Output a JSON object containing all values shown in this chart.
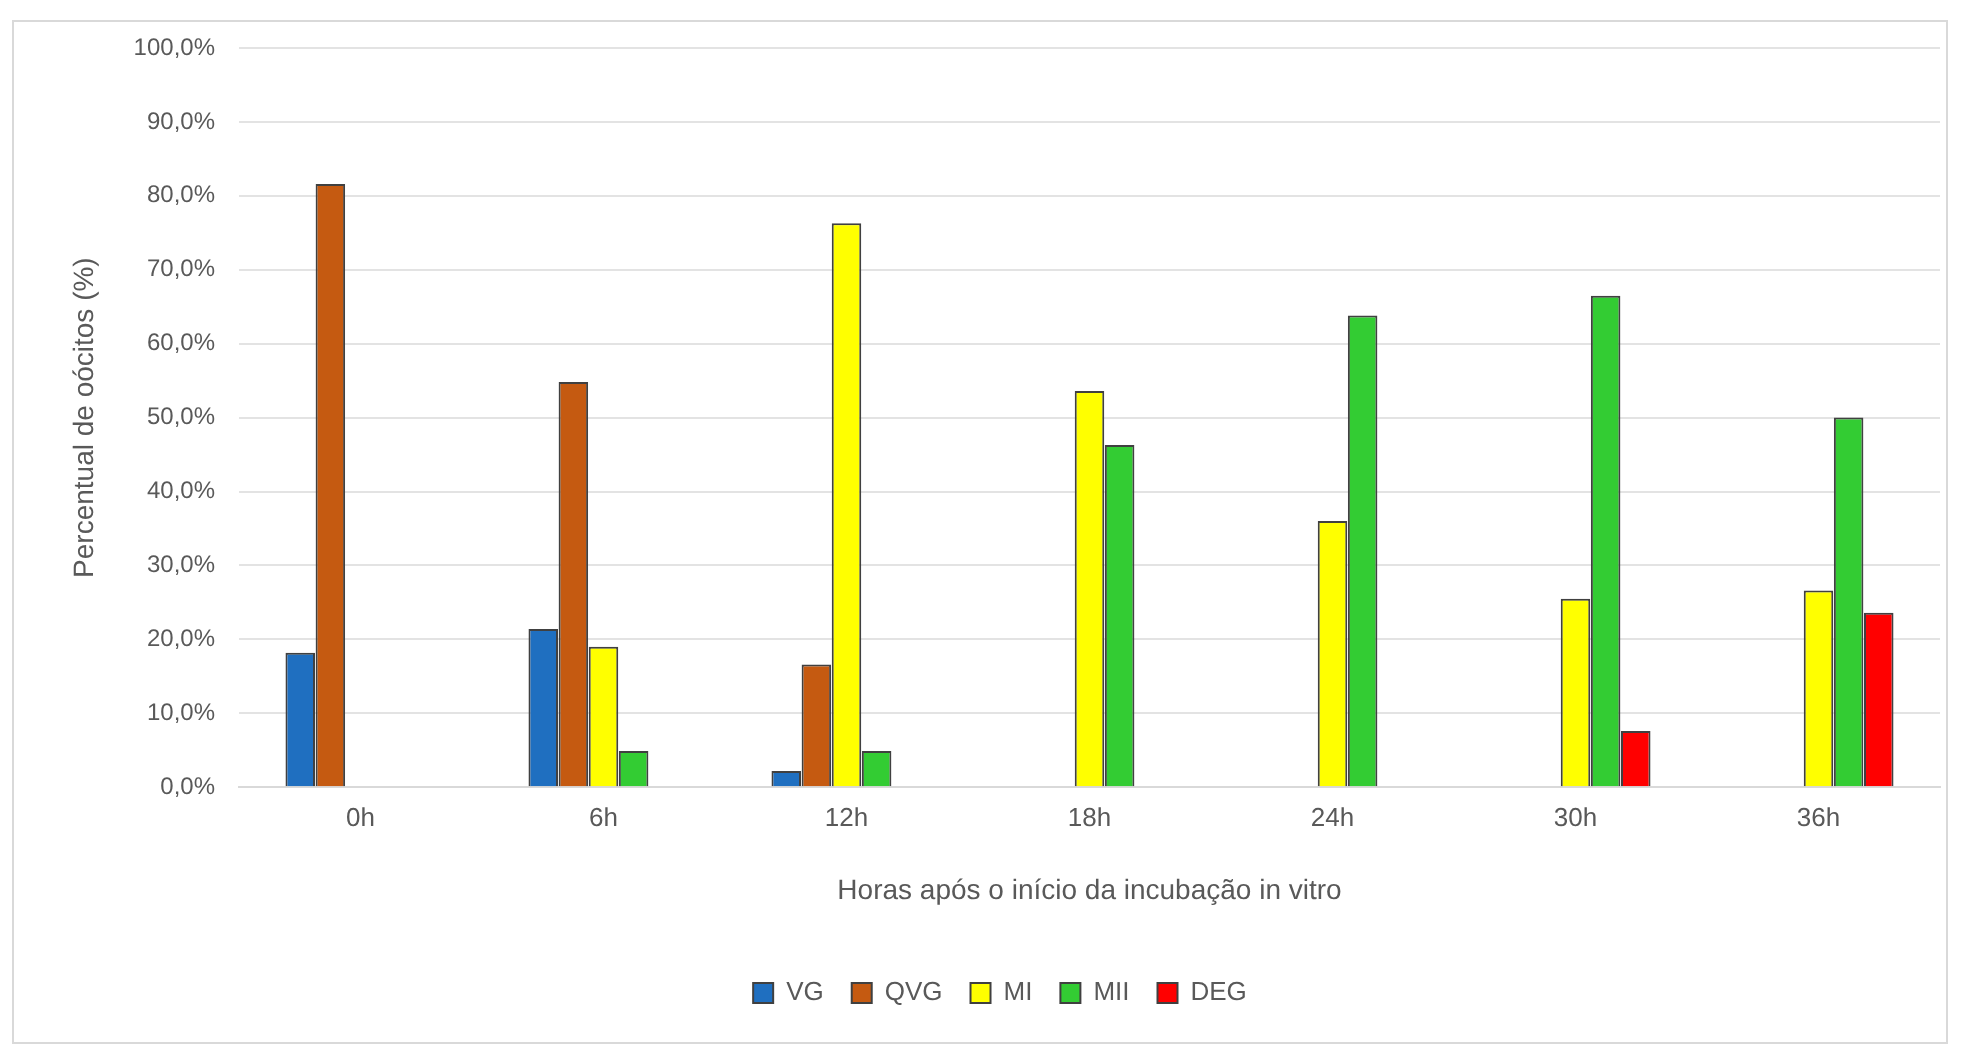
{
  "chart_data": {
    "type": "bar",
    "xlabel": "Horas após o início da incubação in vitro",
    "ylabel": "Percentual de oócitos (%)",
    "categories": [
      "0h",
      "6h",
      "12h",
      "18h",
      "24h",
      "30h",
      "36h"
    ],
    "series": [
      {
        "name": "VG",
        "color": "#1f6fc0",
        "values": [
          18.2,
          21.4,
          2.2,
          null,
          null,
          null,
          null
        ]
      },
      {
        "name": "QVG",
        "color": "#c55a11",
        "values": [
          81.6,
          54.8,
          16.6,
          null,
          null,
          null,
          null
        ]
      },
      {
        "name": "MI",
        "color": "#ffff00",
        "values": [
          null,
          19.0,
          76.3,
          53.6,
          36.0,
          25.5,
          26.6
        ]
      },
      {
        "name": "MII",
        "color": "#33cc33",
        "values": [
          null,
          4.9,
          4.9,
          46.3,
          63.8,
          66.5,
          50.0
        ]
      },
      {
        "name": "DEG",
        "color": "#ff0000",
        "values": [
          null,
          null,
          null,
          null,
          null,
          7.6,
          23.6
        ]
      }
    ],
    "ylim": [
      0,
      100
    ],
    "yticks": [
      {
        "value": 0,
        "label": "0,0%"
      },
      {
        "value": 10,
        "label": "10,0%"
      },
      {
        "value": 20,
        "label": "20,0%"
      },
      {
        "value": 30,
        "label": "30,0%"
      },
      {
        "value": 40,
        "label": "40,0%"
      },
      {
        "value": 50,
        "label": "50,0%"
      },
      {
        "value": 60,
        "label": "60,0%"
      },
      {
        "value": 70,
        "label": "70,0%"
      },
      {
        "value": 80,
        "label": "80,0%"
      },
      {
        "value": 90,
        "label": "90,0%"
      },
      {
        "value": 100,
        "label": "100,0%"
      }
    ],
    "grid": "y",
    "legend": "bottom"
  }
}
